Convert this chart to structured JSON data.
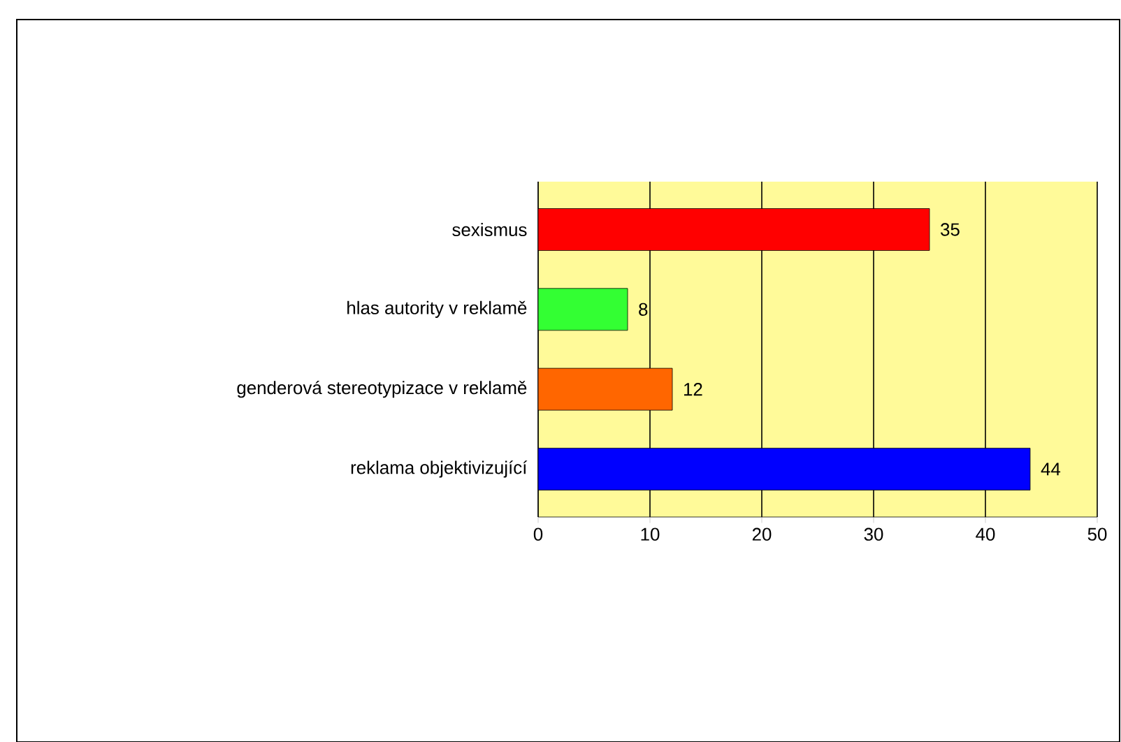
{
  "chart_data": {
    "type": "bar",
    "orientation": "horizontal",
    "categories": [
      "sexismus",
      "hlas autority v reklamě",
      "genderová stereotypizace v reklamě",
      "reklama objektivizující"
    ],
    "values": [
      35,
      8,
      12,
      44
    ],
    "colors": [
      "#ff0000",
      "#33ff33",
      "#ff6600",
      "#0000ff"
    ],
    "xlim": [
      0,
      50
    ],
    "xticks": [
      0,
      10,
      20,
      30,
      40,
      50
    ],
    "grid": "x",
    "data_labels": true
  }
}
